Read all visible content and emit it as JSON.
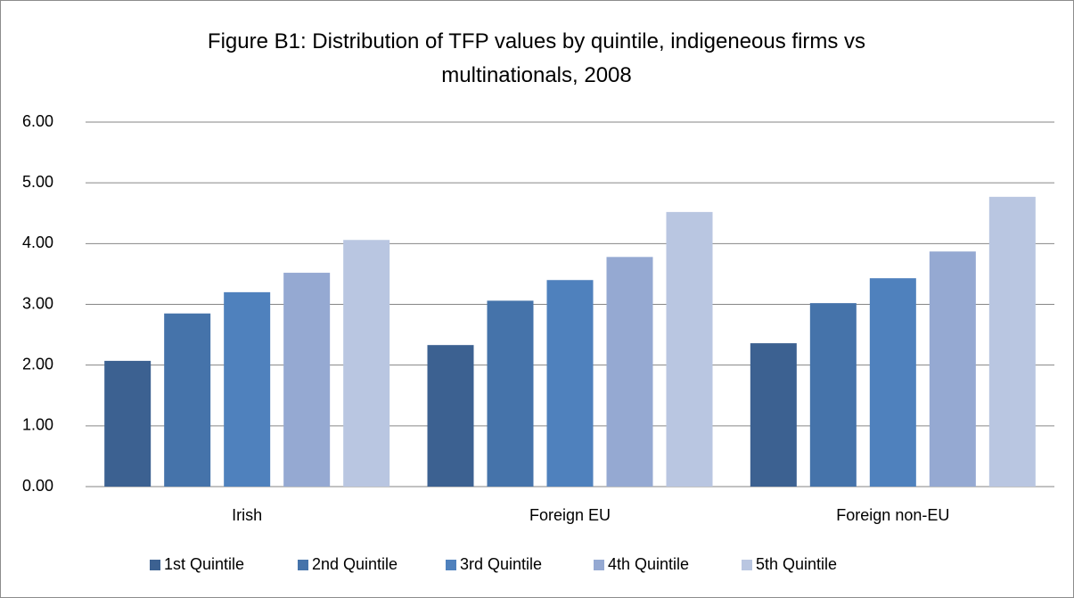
{
  "chart_data": {
    "type": "bar",
    "title": "Figure B1: Distribution of TFP values by quintile, indigeneous firms  vs multinationals, 2008",
    "categories": [
      "Irish",
      "Foreign EU",
      "Foreign non-EU"
    ],
    "series": [
      {
        "name": "1st Quintile",
        "color": "#3c6191",
        "values": [
          2.07,
          2.33,
          2.36
        ]
      },
      {
        "name": "2nd Quintile",
        "color": "#4573aa",
        "values": [
          2.85,
          3.06,
          3.02
        ]
      },
      {
        "name": "3rd Quintile",
        "color": "#4f81bd",
        "values": [
          3.2,
          3.4,
          3.43
        ]
      },
      {
        "name": "4th Quintile",
        "color": "#95a9d2",
        "values": [
          3.52,
          3.78,
          3.87
        ]
      },
      {
        "name": "5th Quintile",
        "color": "#b9c6e1",
        "values": [
          4.06,
          4.52,
          4.77
        ]
      }
    ],
    "ylim": [
      0,
      6
    ],
    "yticks": [
      {
        "value": 0,
        "label": "0.00"
      },
      {
        "value": 1,
        "label": "1.00"
      },
      {
        "value": 2,
        "label": "2.00"
      },
      {
        "value": 3,
        "label": "3.00"
      },
      {
        "value": 4,
        "label": "4.00"
      },
      {
        "value": 5,
        "label": "5.00"
      },
      {
        "value": 6,
        "label": "6.00"
      }
    ],
    "grid": true,
    "legend": "bottom"
  }
}
